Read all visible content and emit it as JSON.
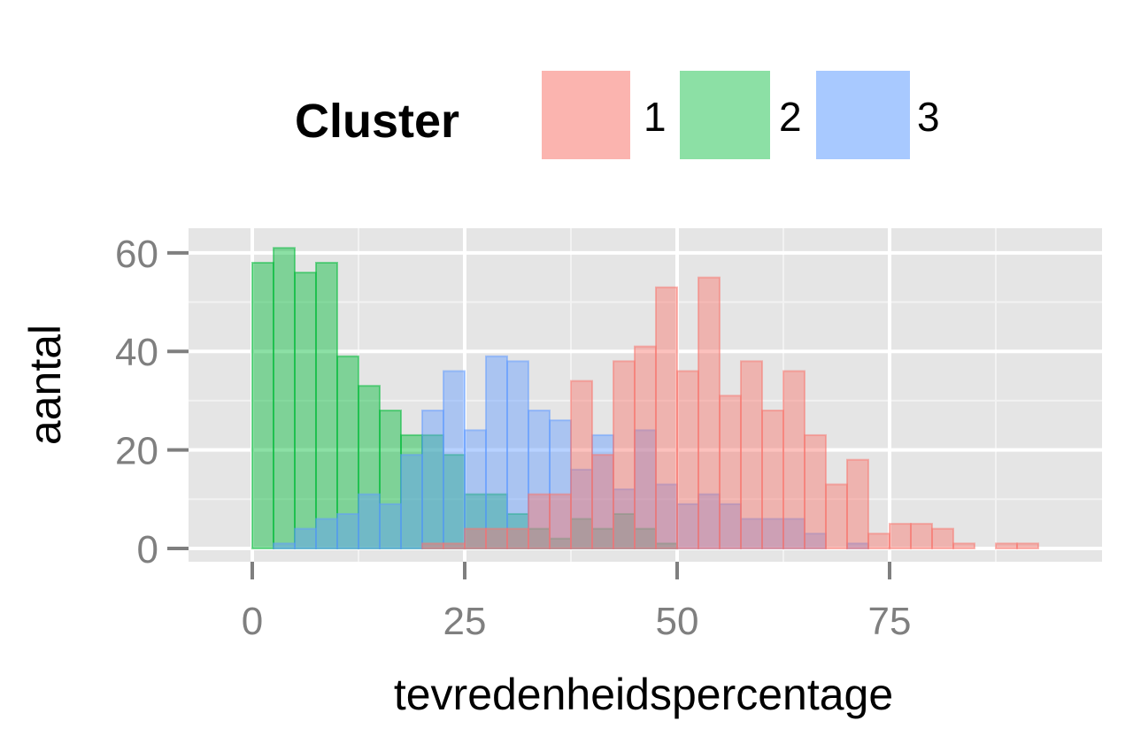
{
  "chart_data": {
    "type": "histogram",
    "xlabel": "tevredenheidspercentage",
    "ylabel": "aantal",
    "xlim": [
      -7.5,
      100
    ],
    "ylim": [
      -2.7,
      65
    ],
    "x_ticks": [
      0,
      25,
      50,
      75
    ],
    "x_tick_labels": [
      "0",
      "25",
      "50",
      "75"
    ],
    "y_ticks": [
      0,
      20,
      40,
      60
    ],
    "y_tick_labels": [
      "0",
      "20",
      "40",
      "60"
    ],
    "grid": true,
    "legend": {
      "title": "Cluster",
      "placement": "top",
      "entries": [
        "1",
        "2",
        "3"
      ]
    },
    "bin_width": 2.5,
    "bin_starts": [
      0,
      2.5,
      5,
      7.5,
      10,
      12.5,
      15,
      17.5,
      20,
      22.5,
      25,
      27.5,
      30,
      32.5,
      35,
      37.5,
      40,
      42.5,
      45,
      47.5,
      50,
      52.5,
      55,
      57.5,
      60,
      62.5,
      65,
      67.5,
      70,
      72.5,
      75,
      77.5,
      80,
      82.5,
      85,
      87.5,
      90
    ],
    "series": [
      {
        "name": "1",
        "color": "#F8766D",
        "values": [
          0,
          0,
          0,
          0,
          0,
          0,
          0,
          0,
          1,
          1,
          4,
          4,
          4,
          11,
          11,
          34,
          19,
          38,
          41,
          53,
          36,
          55,
          31,
          38,
          28,
          36,
          23,
          13,
          18,
          3,
          5,
          5,
          4,
          1,
          0,
          1,
          1
        ]
      },
      {
        "name": "2",
        "color": "#00BA38",
        "values": [
          58,
          61,
          56,
          58,
          39,
          33,
          28,
          23,
          23,
          19,
          11,
          11,
          7,
          4,
          2,
          6,
          4,
          7,
          4,
          1,
          0,
          0,
          0,
          0,
          0,
          0,
          0,
          0,
          0,
          0,
          0,
          0,
          0,
          0,
          0,
          0,
          0
        ]
      },
      {
        "name": "3",
        "color": "#619CFF",
        "values": [
          0,
          1,
          4,
          6,
          7,
          11,
          9,
          19,
          28,
          36,
          24,
          39,
          38,
          28,
          26,
          16,
          23,
          12,
          24,
          13,
          9,
          11,
          9,
          6,
          6,
          6,
          3,
          0,
          1,
          0,
          0,
          0,
          0,
          0,
          0,
          0,
          0
        ]
      }
    ]
  }
}
